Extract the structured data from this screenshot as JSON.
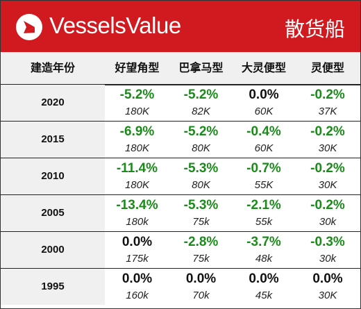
{
  "banner": {
    "brand": "VesselsValue",
    "sector": "散货船",
    "colors": {
      "background": "#d11a1f",
      "text": "#ffffff"
    },
    "logo_icon": "vesselsvalue-logo-icon"
  },
  "header": {
    "year_col": "建造年份",
    "types": [
      "好望角型",
      "巴拿马型",
      "大灵便型",
      "灵便型"
    ]
  },
  "rows": [
    {
      "year": "2020",
      "cells": [
        {
          "change": "-5.2%",
          "size": "180K"
        },
        {
          "change": "-5.2%",
          "size": "82K"
        },
        {
          "change": "0.0%",
          "size": "60K"
        },
        {
          "change": "-0.2%",
          "size": "37K"
        }
      ]
    },
    {
      "year": "2015",
      "cells": [
        {
          "change": "-6.9%",
          "size": "180K"
        },
        {
          "change": "-5.2%",
          "size": "80K"
        },
        {
          "change": "-0.4%",
          "size": "60K"
        },
        {
          "change": "-0.2%",
          "size": "30K"
        }
      ]
    },
    {
      "year": "2010",
      "cells": [
        {
          "change": "-11.4%",
          "size": "180K"
        },
        {
          "change": "-5.3%",
          "size": "80K"
        },
        {
          "change": "-0.7%",
          "size": "55K"
        },
        {
          "change": "-0.2%",
          "size": "30K"
        }
      ]
    },
    {
      "year": "2005",
      "cells": [
        {
          "change": "-13.4%",
          "size": "180k"
        },
        {
          "change": "-5.3%",
          "size": "75k"
        },
        {
          "change": "-2.1%",
          "size": "55k"
        },
        {
          "change": "-0.2%",
          "size": "30k"
        }
      ]
    },
    {
      "year": "2000",
      "cells": [
        {
          "change": "0.0%",
          "size": "175k"
        },
        {
          "change": "-2.8%",
          "size": "75k"
        },
        {
          "change": "-3.7%",
          "size": "48k"
        },
        {
          "change": "-0.3%",
          "size": "30k"
        }
      ]
    },
    {
      "year": "1995",
      "cells": [
        {
          "change": "0.0%",
          "size": "160k"
        },
        {
          "change": "0.0%",
          "size": "70k"
        },
        {
          "change": "0.0%",
          "size": "45k"
        },
        {
          "change": "0.0%",
          "size": "30K"
        }
      ]
    }
  ],
  "colors": {
    "negative": "#1b8a1b",
    "neutral": "#111111",
    "header_bg": "#f0f0f0"
  }
}
